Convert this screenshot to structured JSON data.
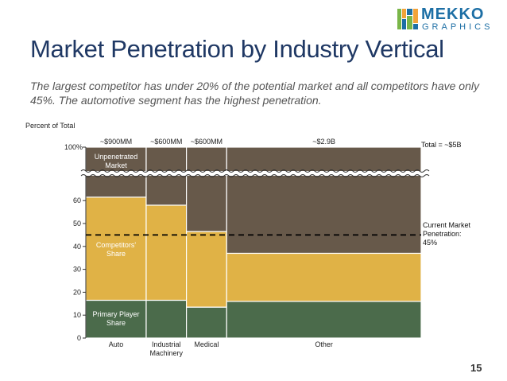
{
  "title": "Market Penetration by Industry Vertical",
  "subtitle": "The largest competitor has under 20% of the potential market and all competitors have only 45%.  The automotive segment has the highest penetration.",
  "logo": {
    "word1": "MEKKO",
    "word2": "GRAPHICS"
  },
  "page_number": "15",
  "colors": {
    "primary": "#4b6b4b",
    "competitors": "#e0b246",
    "unpenetrated": "#67594a",
    "border": "#ffffff"
  },
  "chart_data": {
    "type": "mekko",
    "ylabel": "Percent of Total",
    "yticks": [
      "0",
      "10",
      "20",
      "30",
      "40",
      "50",
      "60"
    ],
    "top_tick": "100%",
    "axis_break": true,
    "total_label": "Total = ~$5B",
    "categories": [
      "Auto",
      "Industrial Machinery",
      "Medical",
      "Other"
    ],
    "category_label_lines": [
      [
        "Auto"
      ],
      [
        "Industrial",
        "Machinery"
      ],
      [
        "Medical"
      ],
      [
        "Other"
      ]
    ],
    "size_labels": [
      "~$900MM",
      "~$600MM",
      "~$600MM",
      "~$2.9B"
    ],
    "widths": [
      0.9,
      0.6,
      0.6,
      2.9
    ],
    "series": [
      {
        "name": "Primary Player Share",
        "label_lines": [
          "Primary Player",
          "Share"
        ],
        "values": [
          16.5,
          16.5,
          13.5,
          16
        ]
      },
      {
        "name": "Competitors' Share",
        "label_lines": [
          "Competitors'",
          "Share"
        ],
        "values": [
          45,
          41.5,
          33,
          21
        ]
      },
      {
        "name": "Unpenetrated Market",
        "label_lines": [
          "Unpenetrated",
          "Market"
        ],
        "values": [
          38.5,
          42,
          53.5,
          63
        ]
      }
    ],
    "reference_line": {
      "value": 45,
      "label_lines": [
        "Current Market",
        "Penetration:",
        "45%"
      ]
    }
  }
}
